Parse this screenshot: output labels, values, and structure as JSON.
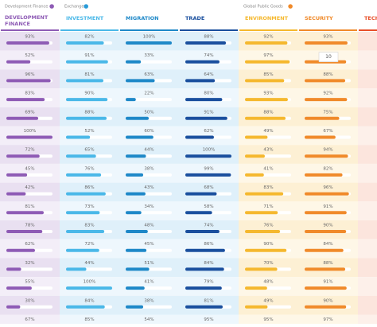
{
  "groups": [
    {
      "title": "Development Finance",
      "color": "#8e5bb5",
      "columns": [
        {
          "name": "DEVELOPMENT FINANCE",
          "color": "#8e5bb5",
          "track": "#ffffff",
          "bg": [
            "#e9e0f1",
            "#f3eef8"
          ],
          "values": [
            93,
            52,
            96,
            83,
            69,
            100,
            72,
            45,
            42,
            81,
            78,
            62,
            32,
            55,
            30,
            67
          ],
          "value_labels": [
            "93%",
            "52%",
            "96%",
            "83%",
            "69%",
            "100%",
            "72%",
            "45%",
            "42%",
            "81%",
            "78%",
            "62%",
            "32%",
            "55%",
            "30%",
            "67%"
          ]
        }
      ]
    },
    {
      "title": "Exchange",
      "color": "#2a9bd8",
      "columns": [
        {
          "name": "INVESTMENT",
          "color": "#4ab8e8",
          "track": "#ffffff",
          "bg": [
            "#dff0fa",
            "#eef7fd"
          ],
          "values": [
            82,
            91,
            81,
            90,
            88,
            52,
            65,
            76,
            86,
            73,
            83,
            72,
            44,
            100,
            84,
            85
          ],
          "value_labels": [
            "82%",
            "91%",
            "81%",
            "90%",
            "88%",
            "52%",
            "65%",
            "76%",
            "86%",
            "73%",
            "83%",
            "72%",
            "44%",
            "100%",
            "84%",
            "85%"
          ]
        },
        {
          "name": "MIGRATION",
          "color": "#1e88c8",
          "track": "#ffffff",
          "bg": [
            "#dff0fa",
            "#eef7fd"
          ],
          "values": [
            100,
            33,
            63,
            22,
            50,
            60,
            44,
            38,
            43,
            34,
            48,
            45,
            51,
            41,
            38,
            54
          ],
          "value_labels": [
            "100%",
            "33%",
            "63%",
            "22%",
            "50%",
            "60%",
            "44%",
            "38%",
            "43%",
            "34%",
            "48%",
            "45%",
            "51%",
            "41%",
            "38%",
            "54%"
          ]
        },
        {
          "name": "TRADE",
          "color": "#1a4f9e",
          "track": "#ffffff",
          "bg": [
            "#dff0fa",
            "#eef7fd"
          ],
          "values": [
            88,
            74,
            64,
            80,
            91,
            62,
            100,
            99,
            68,
            58,
            74,
            86,
            84,
            79,
            81,
            95
          ],
          "value_labels": [
            "88%",
            "74%",
            "64%",
            "80%",
            "91%",
            "62%",
            "100%",
            "99%",
            "68%",
            "58%",
            "74%",
            "86%",
            "84%",
            "79%",
            "81%",
            "95%"
          ]
        }
      ]
    },
    {
      "title": "Global Public Goods",
      "color": "#f08a2a",
      "columns": [
        {
          "name": "ENVIRONMENT",
          "color": "#f5b82e",
          "track": "#ffffff",
          "bg": [
            "#fdf0d4",
            "#fef7e7"
          ],
          "values": [
            92,
            97,
            85,
            93,
            88,
            49,
            43,
            41,
            83,
            71,
            76,
            90,
            70,
            48,
            49,
            95
          ],
          "value_labels": [
            "92%",
            "97%",
            "85%",
            "93%",
            "88%",
            "49%",
            "43%",
            "41%",
            "83%",
            "71%",
            "76%",
            "90%",
            "70%",
            "48%",
            "49%",
            "95%"
          ]
        },
        {
          "name": "SECURITY",
          "color": "#f08a2a",
          "track": "#ffffff",
          "bg": [
            "#fdf0d4",
            "#fef7e7"
          ],
          "values": [
            93,
            90,
            88,
            92,
            75,
            67,
            94,
            82,
            96,
            91,
            90,
            84,
            88,
            91,
            90,
            97
          ],
          "value_labels": [
            "93%",
            null,
            "88%",
            "92%",
            "75%",
            "67%",
            "94%",
            "82%",
            "96%",
            "91%",
            "90%",
            "84%",
            "88%",
            "91%",
            "90%",
            "97%"
          ],
          "tooltip": "10"
        },
        {
          "name": "TECH",
          "color": "#e8502a",
          "track": "#ffffff",
          "bg": [
            "#fce5dd",
            "#fdf0ea"
          ],
          "values": [],
          "value_labels": []
        }
      ]
    }
  ]
}
